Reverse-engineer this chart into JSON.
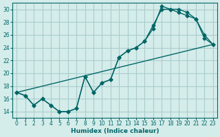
{
  "xlabel": "Humidex (Indice chaleur)",
  "ylabel": "",
  "bg_color": "#d4ecea",
  "grid_color": "#aacccc",
  "line_color": "#006666",
  "xlim": [
    -0.5,
    23.5
  ],
  "ylim": [
    13,
    31
  ],
  "yticks": [
    14,
    16,
    18,
    20,
    22,
    24,
    26,
    28,
    30
  ],
  "xticks": [
    0,
    1,
    2,
    3,
    4,
    5,
    6,
    7,
    8,
    9,
    10,
    11,
    12,
    13,
    14,
    15,
    16,
    17,
    18,
    19,
    20,
    21,
    22,
    23
  ],
  "line1_x": [
    0,
    1,
    2,
    3,
    4,
    5,
    6,
    7,
    8,
    9,
    10,
    11,
    12,
    13,
    14,
    15,
    16,
    17,
    18,
    19,
    20,
    21,
    22,
    23
  ],
  "line1_y": [
    17,
    16.5,
    15,
    16,
    15,
    14,
    14,
    14.5,
    19.5,
    17,
    18.5,
    19,
    22.5,
    23.5,
    24,
    25,
    27,
    30.5,
    30,
    30,
    29.5,
    28.5,
    26,
    24.5
  ],
  "line2_x": [
    0,
    1,
    2,
    3,
    4,
    5,
    6,
    7,
    8,
    9,
    10,
    11,
    12,
    13,
    14,
    15,
    16,
    17,
    18,
    19,
    20,
    21,
    22,
    23
  ],
  "line2_y": [
    17,
    16.5,
    15,
    16,
    15,
    14,
    14,
    14.5,
    19.5,
    17,
    18.5,
    19,
    22.5,
    23.5,
    24,
    25,
    27.5,
    30,
    30,
    29.5,
    29,
    28.5,
    25.5,
    24.5
  ],
  "line3_x": [
    0,
    23
  ],
  "line3_y": [
    17,
    24.5
  ]
}
